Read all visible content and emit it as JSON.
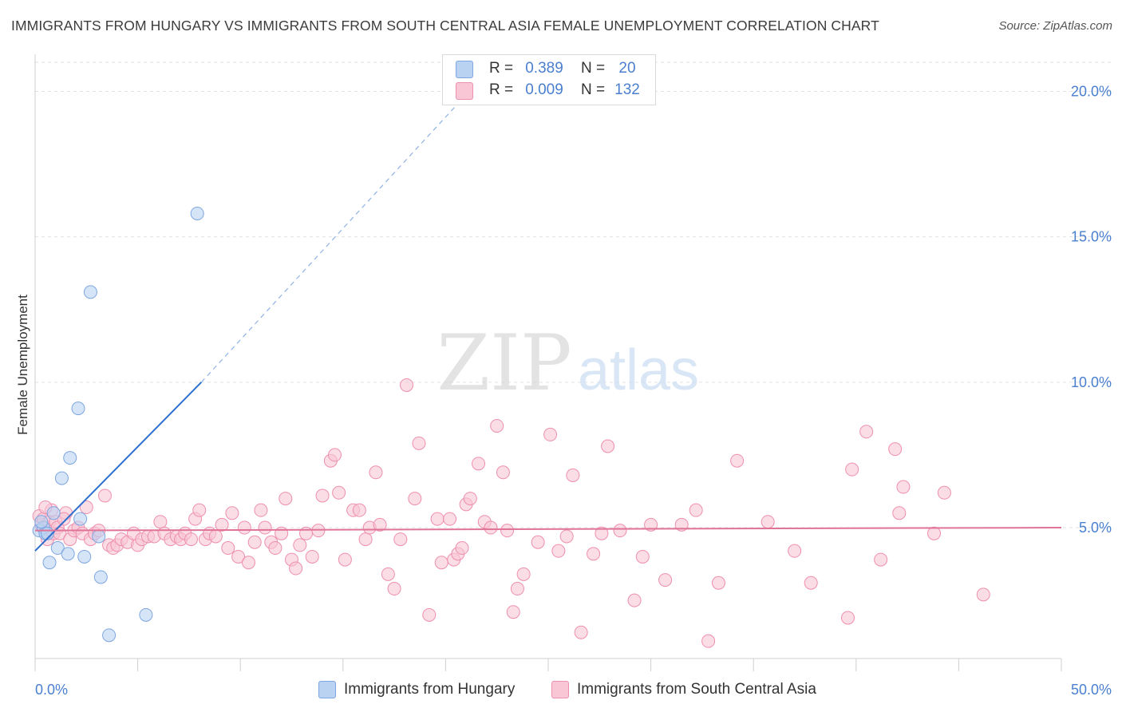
{
  "title": "IMMIGRANTS FROM HUNGARY VS IMMIGRANTS FROM SOUTH CENTRAL ASIA FEMALE UNEMPLOYMENT CORRELATION CHART",
  "source": "Source: ZipAtlas.com",
  "watermark": {
    "zip": "ZIP",
    "atlas": "atlas"
  },
  "stats": [
    {
      "r_label": "R =",
      "r_value": "0.389",
      "n_label": "N =",
      "n_value": "20",
      "color": "#b9d2f2",
      "border": "#7ea6e0"
    },
    {
      "r_label": "R =",
      "r_value": "0.009",
      "n_label": "N =",
      "n_value": "132",
      "color": "#f9c6d5",
      "border": "#ee8fae"
    }
  ],
  "legend": [
    {
      "label": "Immigrants from Hungary",
      "color": "#b9d2f2",
      "border": "#7ea6e0"
    },
    {
      "label": "Immigrants from South Central Asia",
      "color": "#f9c6d5",
      "border": "#ee8fae"
    }
  ],
  "chart_data": {
    "type": "scatter",
    "ylabel": "Female Unemployment",
    "xlabel": "",
    "xlim": [
      0,
      50
    ],
    "ylim": [
      0.5,
      21
    ],
    "x_tick_labels": [
      "0.0%",
      "50.0%"
    ],
    "y_ticks": [
      5,
      10,
      15,
      20
    ],
    "y_tick_labels": [
      "5.0%",
      "10.0%",
      "15.0%",
      "20.0%"
    ],
    "grid": true,
    "series": [
      {
        "name": "Immigrants from Hungary",
        "color": "#7ea6e0",
        "fill": "#b9d2f2",
        "points": [
          [
            0.2,
            4.9
          ],
          [
            0.4,
            5.0
          ],
          [
            0.5,
            4.8
          ],
          [
            0.7,
            3.8
          ],
          [
            0.9,
            5.5
          ],
          [
            1.1,
            4.3
          ],
          [
            1.3,
            6.7
          ],
          [
            1.6,
            4.1
          ],
          [
            1.7,
            7.4
          ],
          [
            2.1,
            9.1
          ],
          [
            2.2,
            5.3
          ],
          [
            2.4,
            4.0
          ],
          [
            2.7,
            13.1
          ],
          [
            3.1,
            4.7
          ],
          [
            3.2,
            3.3
          ],
          [
            3.6,
            1.3
          ],
          [
            5.4,
            2.0
          ],
          [
            7.9,
            15.8
          ],
          [
            0.6,
            4.8
          ],
          [
            0.3,
            5.2
          ]
        ],
        "trend": {
          "x": [
            0,
            8.1
          ],
          "y": [
            4.2,
            10.0
          ],
          "dashed_to": [
            20.5,
            19.5
          ]
        }
      },
      {
        "name": "Immigrants from South Central Asia",
        "color": "#ee8fae",
        "fill": "#f9c6d5",
        "points": [
          [
            0.2,
            5.4
          ],
          [
            0.3,
            5.1
          ],
          [
            0.4,
            5.3
          ],
          [
            0.5,
            5.0
          ],
          [
            0.6,
            4.6
          ],
          [
            0.7,
            5.2
          ],
          [
            0.8,
            5.6
          ],
          [
            0.9,
            4.8
          ],
          [
            1.0,
            5.2
          ],
          [
            1.1,
            5.0
          ],
          [
            1.2,
            4.8
          ],
          [
            1.5,
            5.5
          ],
          [
            1.7,
            4.6
          ],
          [
            1.9,
            4.9
          ],
          [
            2.1,
            5.0
          ],
          [
            2.3,
            4.8
          ],
          [
            2.5,
            5.7
          ],
          [
            2.7,
            4.6
          ],
          [
            2.9,
            4.8
          ],
          [
            3.1,
            4.9
          ],
          [
            3.4,
            6.1
          ],
          [
            3.6,
            4.4
          ],
          [
            3.8,
            4.3
          ],
          [
            4.0,
            4.4
          ],
          [
            4.2,
            4.6
          ],
          [
            4.5,
            4.5
          ],
          [
            4.8,
            4.8
          ],
          [
            5.0,
            4.4
          ],
          [
            5.2,
            4.6
          ],
          [
            5.5,
            4.7
          ],
          [
            5.8,
            4.7
          ],
          [
            6.1,
            5.2
          ],
          [
            6.3,
            4.8
          ],
          [
            6.6,
            4.6
          ],
          [
            6.9,
            4.7
          ],
          [
            7.1,
            4.6
          ],
          [
            7.3,
            4.8
          ],
          [
            7.6,
            4.6
          ],
          [
            7.8,
            5.3
          ],
          [
            8.0,
            5.6
          ],
          [
            8.3,
            4.6
          ],
          [
            8.5,
            4.8
          ],
          [
            8.8,
            4.7
          ],
          [
            9.1,
            5.1
          ],
          [
            9.4,
            4.3
          ],
          [
            9.6,
            5.5
          ],
          [
            9.9,
            4.0
          ],
          [
            10.2,
            5.0
          ],
          [
            10.4,
            3.8
          ],
          [
            10.7,
            4.5
          ],
          [
            11.0,
            5.6
          ],
          [
            11.2,
            5.0
          ],
          [
            11.5,
            4.5
          ],
          [
            11.7,
            4.3
          ],
          [
            12.0,
            4.8
          ],
          [
            12.2,
            6.0
          ],
          [
            12.5,
            3.9
          ],
          [
            12.7,
            3.6
          ],
          [
            12.9,
            4.4
          ],
          [
            13.2,
            4.8
          ],
          [
            13.5,
            4.0
          ],
          [
            13.8,
            4.9
          ],
          [
            14.0,
            6.1
          ],
          [
            14.4,
            7.3
          ],
          [
            14.6,
            7.5
          ],
          [
            14.8,
            6.2
          ],
          [
            15.1,
            3.9
          ],
          [
            15.5,
            5.6
          ],
          [
            15.8,
            5.6
          ],
          [
            16.1,
            4.6
          ],
          [
            16.3,
            5.0
          ],
          [
            16.6,
            6.9
          ],
          [
            16.8,
            5.1
          ],
          [
            17.2,
            3.4
          ],
          [
            17.5,
            2.9
          ],
          [
            17.8,
            4.6
          ],
          [
            18.1,
            9.9
          ],
          [
            18.5,
            6.0
          ],
          [
            18.7,
            7.9
          ],
          [
            19.2,
            2.0
          ],
          [
            19.6,
            5.3
          ],
          [
            19.8,
            3.8
          ],
          [
            20.2,
            5.3
          ],
          [
            20.4,
            3.9
          ],
          [
            20.6,
            4.1
          ],
          [
            20.8,
            4.3
          ],
          [
            21.0,
            5.8
          ],
          [
            21.2,
            6.0
          ],
          [
            21.6,
            7.2
          ],
          [
            21.9,
            5.2
          ],
          [
            22.2,
            5.0
          ],
          [
            22.5,
            8.5
          ],
          [
            22.8,
            6.9
          ],
          [
            23.0,
            4.9
          ],
          [
            23.3,
            2.1
          ],
          [
            23.5,
            2.9
          ],
          [
            23.8,
            3.4
          ],
          [
            24.5,
            4.5
          ],
          [
            25.1,
            8.2
          ],
          [
            25.5,
            4.2
          ],
          [
            25.9,
            4.7
          ],
          [
            26.2,
            6.8
          ],
          [
            26.6,
            1.4
          ],
          [
            27.2,
            4.1
          ],
          [
            27.6,
            4.8
          ],
          [
            27.9,
            7.8
          ],
          [
            28.5,
            4.9
          ],
          [
            29.2,
            2.5
          ],
          [
            29.6,
            4.0
          ],
          [
            30.0,
            5.1
          ],
          [
            30.7,
            3.2
          ],
          [
            31.5,
            5.1
          ],
          [
            32.2,
            5.6
          ],
          [
            32.8,
            1.1
          ],
          [
            33.3,
            3.1
          ],
          [
            34.2,
            7.3
          ],
          [
            35.7,
            5.2
          ],
          [
            37.0,
            4.2
          ],
          [
            37.8,
            3.1
          ],
          [
            39.6,
            1.9
          ],
          [
            39.8,
            7.0
          ],
          [
            40.5,
            8.3
          ],
          [
            41.2,
            3.9
          ],
          [
            41.9,
            7.7
          ],
          [
            42.1,
            5.5
          ],
          [
            42.3,
            6.4
          ],
          [
            43.8,
            4.8
          ],
          [
            44.3,
            6.2
          ],
          [
            46.2,
            2.7
          ],
          [
            0.5,
            5.7
          ],
          [
            1.4,
            5.3
          ]
        ],
        "trend": {
          "x": [
            0,
            50
          ],
          "y": [
            4.9,
            5.0
          ]
        }
      }
    ]
  }
}
